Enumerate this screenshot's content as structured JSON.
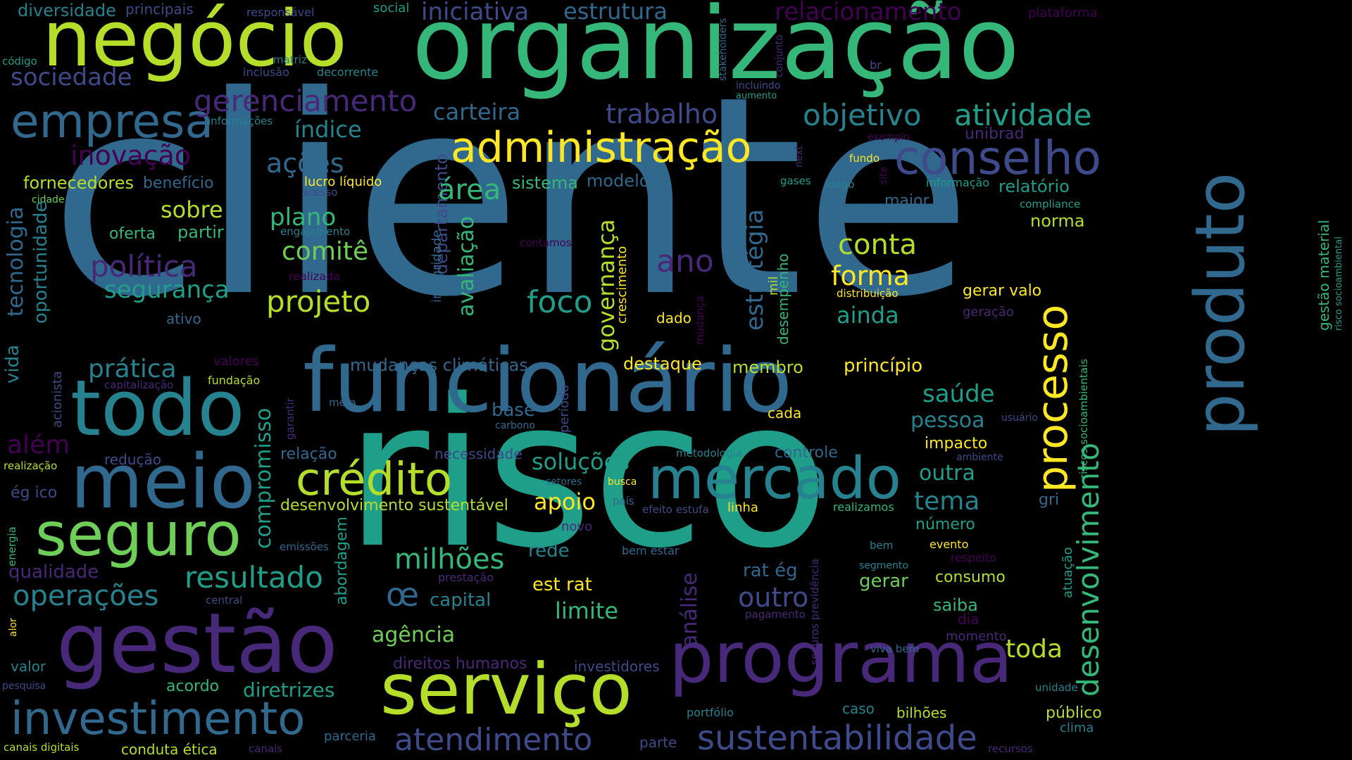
{
  "palette": {
    "p0": "#440154",
    "p1": "#482878",
    "p2": "#3e4a89",
    "p3": "#31688e",
    "p4": "#26828e",
    "p5": "#1f9e89",
    "p6": "#35b779",
    "p7": "#6ece58",
    "p8": "#b5de2b",
    "p9": "#fde725",
    "bg": "#000000"
  },
  "words": [
    {
      "text": "cliente",
      "color": "p3"
    },
    {
      "text": "risco",
      "color": "p5"
    },
    {
      "text": "organização",
      "color": "p6"
    },
    {
      "text": "negócio",
      "color": "p8"
    },
    {
      "text": "funcionário",
      "color": "p3"
    },
    {
      "text": "todo",
      "color": "p4"
    },
    {
      "text": "meio",
      "color": "p3"
    },
    {
      "text": "gestão",
      "color": "p1"
    },
    {
      "text": "produto",
      "color": "p3"
    },
    {
      "text": "serviço",
      "color": "p8"
    },
    {
      "text": "programa",
      "color": "p1"
    },
    {
      "text": "mercado",
      "color": "p4"
    },
    {
      "text": "seguro",
      "color": "p7"
    },
    {
      "text": "investimento",
      "color": "p3"
    },
    {
      "text": "administração",
      "color": "p9"
    },
    {
      "text": "empresa",
      "color": "p3"
    },
    {
      "text": "conselho",
      "color": "p2"
    },
    {
      "text": "crédito",
      "color": "p8"
    },
    {
      "text": "processo",
      "color": "p9"
    },
    {
      "text": "sustentabilidade",
      "color": "p2"
    },
    {
      "text": "atendimento",
      "color": "p2"
    },
    {
      "text": "gerenciamento",
      "color": "p1"
    },
    {
      "text": "objetivo",
      "color": "p4"
    },
    {
      "text": "atividade",
      "color": "p5"
    },
    {
      "text": "desenvolvimento",
      "color": "p6"
    },
    {
      "text": "resultado",
      "color": "p5"
    },
    {
      "text": "operações",
      "color": "p4"
    },
    {
      "text": "relacionamento",
      "color": "p0"
    },
    {
      "text": "iniciativa",
      "color": "p2"
    },
    {
      "text": "estrutura",
      "color": "p3"
    },
    {
      "text": "diversidade",
      "color": "p4"
    },
    {
      "text": "principais",
      "color": "p2"
    },
    {
      "text": "responsável",
      "color": "p2"
    },
    {
      "text": "social",
      "color": "p5"
    },
    {
      "text": "plataforma",
      "color": "p0"
    },
    {
      "text": "código",
      "color": "p5"
    },
    {
      "text": "matriz",
      "color": "p4"
    },
    {
      "text": "stakeholders",
      "color": "p3"
    },
    {
      "text": "conjunto",
      "color": "p1"
    },
    {
      "text": "br",
      "color": "p2"
    },
    {
      "text": "sociedade",
      "color": "p2"
    },
    {
      "text": "inclusão",
      "color": "p2"
    },
    {
      "text": "decorrente",
      "color": "p4"
    },
    {
      "text": "incluindo",
      "color": "p2"
    },
    {
      "text": "aumento",
      "color": "p5"
    },
    {
      "text": "carteira",
      "color": "p3"
    },
    {
      "text": "trabalho",
      "color": "p2"
    },
    {
      "text": "informações",
      "color": "p4"
    },
    {
      "text": "índice",
      "color": "p4"
    },
    {
      "text": "exemplo",
      "color": "p0"
    },
    {
      "text": "unibrad",
      "color": "p1"
    },
    {
      "text": "inovação",
      "color": "p0"
    },
    {
      "text": "ações",
      "color": "p3"
    },
    {
      "text": "fundo",
      "color": "p9"
    },
    {
      "text": "next",
      "color": "p1"
    },
    {
      "text": "site",
      "color": "p0"
    },
    {
      "text": "fornecedores",
      "color": "p8"
    },
    {
      "text": "benefício",
      "color": "p3"
    },
    {
      "text": "tecnologia",
      "color": "p3"
    },
    {
      "text": "departamento",
      "color": "p2"
    },
    {
      "text": "lucro líquido",
      "color": "p9"
    },
    {
      "text": "acesso",
      "color": "p2"
    },
    {
      "text": "sistema",
      "color": "p6"
    },
    {
      "text": "modelo",
      "color": "p3"
    },
    {
      "text": "área",
      "color": "p6"
    },
    {
      "text": "gases",
      "color": "p5"
    },
    {
      "text": "longo",
      "color": "p4"
    },
    {
      "text": "informação",
      "color": "p5"
    },
    {
      "text": "relatório",
      "color": "p5"
    },
    {
      "text": "compliance",
      "color": "p5"
    },
    {
      "text": "risco socioambiental",
      "color": "p5"
    },
    {
      "text": "cidade",
      "color": "p7"
    },
    {
      "text": "sobre",
      "color": "p8"
    },
    {
      "text": "plano",
      "color": "p6"
    },
    {
      "text": "governança",
      "color": "p8"
    },
    {
      "text": "estratégia",
      "color": "p3"
    },
    {
      "text": "maior",
      "color": "p3"
    },
    {
      "text": "norma",
      "color": "p8"
    },
    {
      "text": "oferta",
      "color": "p6"
    },
    {
      "text": "partir",
      "color": "p6"
    },
    {
      "text": "engajamento",
      "color": "p4"
    },
    {
      "text": "crescimento",
      "color": "p9"
    },
    {
      "text": "contamos",
      "color": "p0"
    },
    {
      "text": "conta",
      "color": "p8"
    },
    {
      "text": "oportunidade",
      "color": "p4"
    },
    {
      "text": "comitê",
      "color": "p7"
    },
    {
      "text": "avaliação",
      "color": "p6"
    },
    {
      "text": "ano",
      "color": "p1"
    },
    {
      "text": "gestão material",
      "color": "p6"
    },
    {
      "text": "política",
      "color": "p1"
    },
    {
      "text": "realizada",
      "color": "p0"
    },
    {
      "text": "integridade",
      "color": "p3"
    },
    {
      "text": "forma",
      "color": "p9"
    },
    {
      "text": "segurança",
      "color": "p5"
    },
    {
      "text": "projeto",
      "color": "p8"
    },
    {
      "text": "foco",
      "color": "p5"
    },
    {
      "text": "mil",
      "color": "p8"
    },
    {
      "text": "desempenho",
      "color": "p6"
    },
    {
      "text": "mudança",
      "color": "p0"
    },
    {
      "text": "distribuição",
      "color": "p9"
    },
    {
      "text": "gerar valo",
      "color": "p9"
    },
    {
      "text": "vida",
      "color": "p4"
    },
    {
      "text": "ativo",
      "color": "p3"
    },
    {
      "text": "dado",
      "color": "p9"
    },
    {
      "text": "ainda",
      "color": "p5"
    },
    {
      "text": "geração",
      "color": "p1"
    },
    {
      "text": "acionista",
      "color": "p2"
    },
    {
      "text": "valores",
      "color": "p0"
    },
    {
      "text": "prática",
      "color": "p4"
    },
    {
      "text": "mudanças climáticas",
      "color": "p3"
    },
    {
      "text": "destaque",
      "color": "p9"
    },
    {
      "text": "membro",
      "color": "p8"
    },
    {
      "text": "princípio",
      "color": "p9"
    },
    {
      "text": "fundação",
      "color": "p8"
    },
    {
      "text": "capitalização",
      "color": "p1"
    },
    {
      "text": "garantir",
      "color": "p1"
    },
    {
      "text": "compromisso",
      "color": "p5"
    },
    {
      "text": "período",
      "color": "p2"
    },
    {
      "text": "saúde",
      "color": "p5"
    },
    {
      "text": "meta",
      "color": "p3"
    },
    {
      "text": "base",
      "color": "p3"
    },
    {
      "text": "cada",
      "color": "p9"
    },
    {
      "text": "pessoa",
      "color": "p4"
    },
    {
      "text": "usuário",
      "color": "p2"
    },
    {
      "text": "além",
      "color": "p0"
    },
    {
      "text": "carbono",
      "color": "p3"
    },
    {
      "text": "impacto",
      "color": "p9"
    },
    {
      "text": "riscos socioambientais",
      "color": "p6"
    },
    {
      "text": "redução",
      "color": "p2"
    },
    {
      "text": "relação",
      "color": "p3"
    },
    {
      "text": "necessidade",
      "color": "p2"
    },
    {
      "text": "metodologia",
      "color": "p4"
    },
    {
      "text": "controle",
      "color": "p3"
    },
    {
      "text": "ambiente",
      "color": "p2"
    },
    {
      "text": "realização",
      "color": "p8"
    },
    {
      "text": "soluções",
      "color": "p5"
    },
    {
      "text": "setores",
      "color": "p3"
    },
    {
      "text": "busca",
      "color": "p9"
    },
    {
      "text": "outra",
      "color": "p5"
    },
    {
      "text": "ég ico",
      "color": "p2"
    },
    {
      "text": "apoio",
      "color": "p9"
    },
    {
      "text": "país",
      "color": "p3"
    },
    {
      "text": "tema",
      "color": "p4"
    },
    {
      "text": "energia",
      "color": "p6"
    },
    {
      "text": "desenvolvimento sustentável",
      "color": "p8"
    },
    {
      "text": "efeito estufa",
      "color": "p2"
    },
    {
      "text": "linha",
      "color": "p9"
    },
    {
      "text": "realizamos",
      "color": "p6"
    },
    {
      "text": "gri",
      "color": "p3"
    },
    {
      "text": "abordagem",
      "color": "p5"
    },
    {
      "text": "novo",
      "color": "p1"
    },
    {
      "text": "número",
      "color": "p5"
    },
    {
      "text": "atuação",
      "color": "p5"
    },
    {
      "text": "emissões",
      "color": "p3"
    },
    {
      "text": "rede",
      "color": "p4"
    },
    {
      "text": "bem estar",
      "color": "p3"
    },
    {
      "text": "bem",
      "color": "p4"
    },
    {
      "text": "evento",
      "color": "p9"
    },
    {
      "text": "respeito",
      "color": "p0"
    },
    {
      "text": "milhões",
      "color": "p6"
    },
    {
      "text": "segmento",
      "color": "p4"
    },
    {
      "text": "qualidade",
      "color": "p1"
    },
    {
      "text": "prestação",
      "color": "p1"
    },
    {
      "text": "rat ég",
      "color": "p3"
    },
    {
      "text": "consumo",
      "color": "p8"
    },
    {
      "text": "seguros previdência",
      "color": "p1"
    },
    {
      "text": "análise",
      "color": "p1"
    },
    {
      "text": "œ",
      "color": "p3"
    },
    {
      "text": "est rat",
      "color": "p9"
    },
    {
      "text": "gerar",
      "color": "p7"
    },
    {
      "text": "capital",
      "color": "p4"
    },
    {
      "text": "central",
      "color": "p2"
    },
    {
      "text": "outro",
      "color": "p2"
    },
    {
      "text": "saiba",
      "color": "p6"
    },
    {
      "text": "limite",
      "color": "p6"
    },
    {
      "text": "pagamento",
      "color": "p1"
    },
    {
      "text": "dia",
      "color": "p0"
    },
    {
      "text": "alor",
      "color": "p9"
    },
    {
      "text": "agência",
      "color": "p7"
    },
    {
      "text": "momento",
      "color": "p1"
    },
    {
      "text": "toda",
      "color": "p8"
    },
    {
      "text": "viva bem",
      "color": "p3"
    },
    {
      "text": "valor",
      "color": "p4"
    },
    {
      "text": "direitos humanos",
      "color": "p1"
    },
    {
      "text": "investidores",
      "color": "p2"
    },
    {
      "text": "pesquisa",
      "color": "p2"
    },
    {
      "text": "acordo",
      "color": "p6"
    },
    {
      "text": "diretrizes",
      "color": "p5"
    },
    {
      "text": "unidade",
      "color": "p4"
    },
    {
      "text": "portfólio",
      "color": "p4"
    },
    {
      "text": "caso",
      "color": "p4"
    },
    {
      "text": "bilhões",
      "color": "p8"
    },
    {
      "text": "público",
      "color": "p8"
    },
    {
      "text": "parceria",
      "color": "p3"
    },
    {
      "text": "clima",
      "color": "p4"
    },
    {
      "text": "canais digitais",
      "color": "p8"
    },
    {
      "text": "conduta ética",
      "color": "p8"
    },
    {
      "text": "canais",
      "color": "p1"
    },
    {
      "text": "parte",
      "color": "p2"
    },
    {
      "text": "recursos",
      "color": "p1"
    }
  ]
}
